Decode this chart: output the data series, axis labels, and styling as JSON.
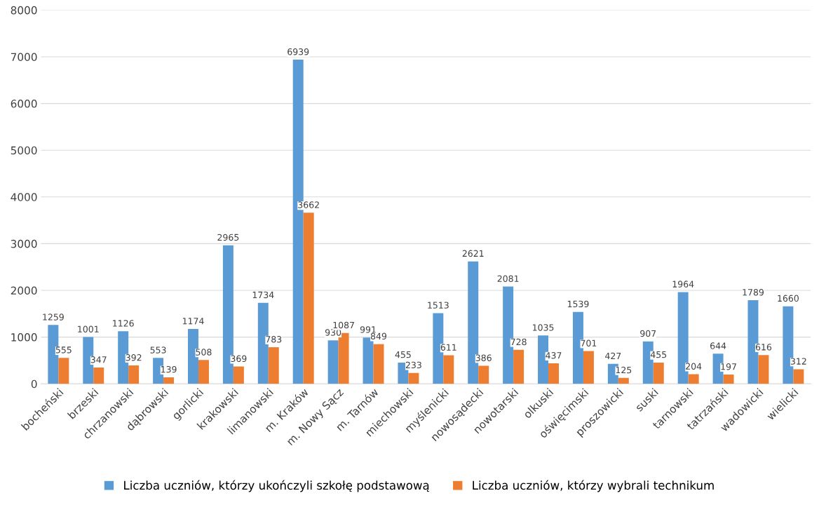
{
  "chart_data": {
    "type": "bar",
    "categories": [
      "bocheński",
      "brzeski",
      "chrzanowski",
      "dąbrowski",
      "gorlicki",
      "krakowski",
      "limanowski",
      "m. Kraków",
      "m. Nowy Sącz",
      "m. Tarnów",
      "miechowski",
      "myślenicki",
      "nowosądecki",
      "nowotarski",
      "olkuski",
      "oświęcimski",
      "proszowicki",
      "suski",
      "tarnowski",
      "tatrzański",
      "wadowicki",
      "wielicki"
    ],
    "series": [
      {
        "name": "Liczba uczniów, którzy ukończyli szkołę podstawową",
        "color": "#5b9bd5",
        "values": [
          1259,
          1001,
          1126,
          553,
          1174,
          2965,
          1734,
          6939,
          930,
          991,
          455,
          1513,
          2621,
          2081,
          1035,
          1539,
          427,
          907,
          1964,
          644,
          1789,
          1660
        ]
      },
      {
        "name": "Liczba uczniów, którzy wybrali technikum",
        "color": "#ed7d31",
        "values": [
          555,
          347,
          392,
          139,
          508,
          369,
          783,
          3662,
          1087,
          849,
          233,
          611,
          386,
          728,
          437,
          701,
          125,
          455,
          204,
          197,
          616,
          312
        ]
      }
    ],
    "ylim": [
      0,
      8000
    ],
    "yticks": [
      0,
      1000,
      2000,
      3000,
      4000,
      5000,
      6000,
      7000,
      8000
    ],
    "grid": "y",
    "legend": "bottom",
    "data_labels": true
  }
}
